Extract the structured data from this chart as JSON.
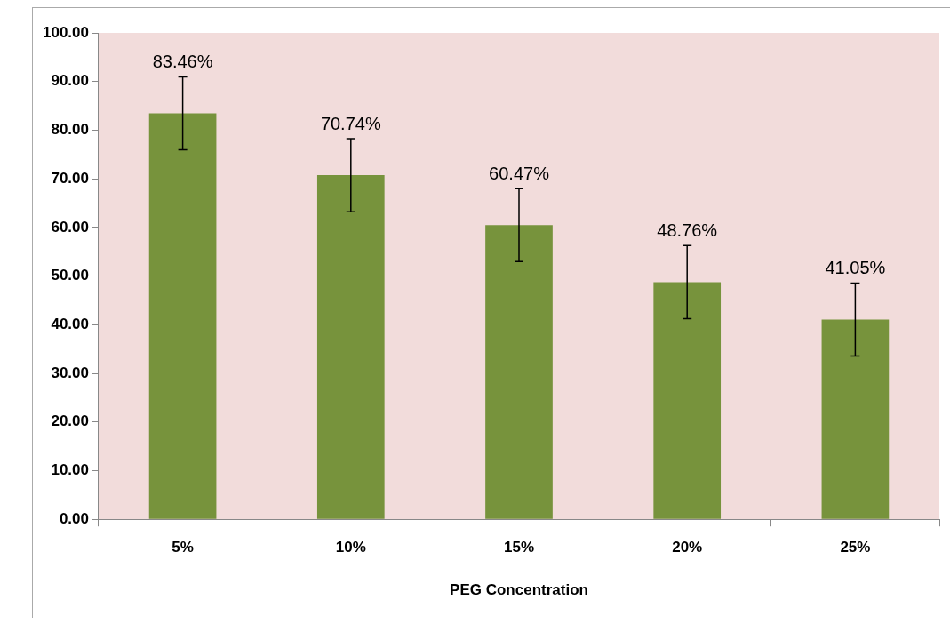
{
  "chart_data": {
    "type": "bar",
    "xlabel": "PEG Concentration",
    "categories": [
      "5%",
      "10%",
      "15%",
      "20%",
      "25%"
    ],
    "values": [
      83.46,
      70.74,
      60.47,
      48.76,
      41.05
    ],
    "value_labels": [
      "83.46%",
      "70.74%",
      "60.47%",
      "48.76%",
      "41.05%"
    ],
    "errors": [
      7.5,
      7.5,
      7.5,
      7.5,
      7.5
    ],
    "color": "#77933c",
    "ylim": [
      0,
      100
    ],
    "yticks": [
      {
        "value": 0,
        "label": "0.00"
      },
      {
        "value": 10,
        "label": "10.00"
      },
      {
        "value": 20,
        "label": "20.00"
      },
      {
        "value": 30,
        "label": "30.00"
      },
      {
        "value": 40,
        "label": "40.00"
      },
      {
        "value": 50,
        "label": "50.00"
      },
      {
        "value": 60,
        "label": "60.00"
      },
      {
        "value": 70,
        "label": "70.00"
      },
      {
        "value": 80,
        "label": "80.00"
      },
      {
        "value": 90,
        "label": "90.00"
      },
      {
        "value": 100,
        "label": "100.00"
      }
    ],
    "grid": false,
    "legend": false
  }
}
